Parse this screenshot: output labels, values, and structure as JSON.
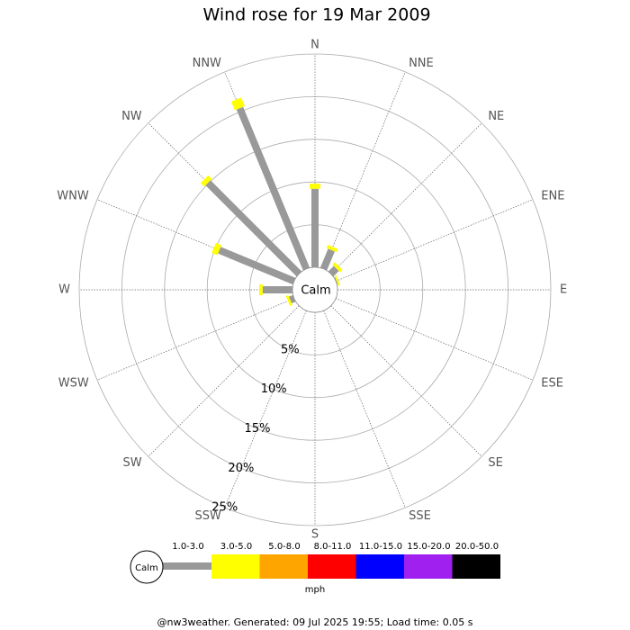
{
  "chart_data": {
    "type": "windrose",
    "title": "Wind rose for 19 Mar 2009",
    "categories": [
      "N",
      "NNE",
      "NE",
      "ENE",
      "E",
      "ESE",
      "SE",
      "SSE",
      "S",
      "SSW",
      "SW",
      "WSW",
      "W",
      "WNW",
      "NW",
      "NNW"
    ],
    "series": [
      {
        "name": "1.0-3.0",
        "color": "#999999",
        "values": [
          9.2,
          2.4,
          0.9,
          0.1,
          0,
          0,
          0,
          0,
          0,
          0,
          0,
          0.5,
          3.5,
          9.5,
          15.1,
          20.4
        ]
      },
      {
        "name": "3.0-5.0",
        "color": "#ffff00",
        "values": [
          0.6,
          0.4,
          0.4,
          0.2,
          0,
          0,
          0,
          0,
          0,
          0,
          0,
          0.3,
          0.4,
          0.7,
          0.6,
          1.1
        ]
      },
      {
        "name": "5.0-8.0",
        "color": "#ffa500",
        "values": [
          0,
          0,
          0,
          0,
          0,
          0,
          0,
          0,
          0,
          0,
          0,
          0,
          0,
          0,
          0,
          0
        ]
      },
      {
        "name": "8.0-11.0",
        "color": "#ff0000",
        "values": [
          0,
          0,
          0,
          0,
          0,
          0,
          0,
          0,
          0,
          0,
          0,
          0,
          0,
          0,
          0,
          0
        ]
      },
      {
        "name": "11.0-15.0",
        "color": "#0000ff",
        "values": [
          0,
          0,
          0,
          0,
          0,
          0,
          0,
          0,
          0,
          0,
          0,
          0,
          0,
          0,
          0,
          0
        ]
      },
      {
        "name": "15.0-20.0",
        "color": "#a020f0",
        "values": [
          0,
          0,
          0,
          0,
          0,
          0,
          0,
          0,
          0,
          0,
          0,
          0,
          0,
          0,
          0,
          0
        ]
      },
      {
        "name": "20.0-50.0",
        "color": "#000000",
        "values": [
          0,
          0,
          0,
          0,
          0,
          0,
          0,
          0,
          0,
          0,
          0,
          0,
          0,
          0,
          0,
          0
        ]
      }
    ],
    "rlim": [
      0,
      25
    ],
    "rticks": [
      {
        "value": 5,
        "label": "5%"
      },
      {
        "value": 10,
        "label": "10%"
      },
      {
        "value": 15,
        "label": "15%"
      },
      {
        "value": 20,
        "label": "20%"
      },
      {
        "value": 25,
        "label": "25%"
      }
    ],
    "calm_label": "Calm",
    "legend_unit": "mph",
    "footer": "@nw3weather. Generated: 09 Jul 2025 19:55; Load time: 0.05 s"
  }
}
